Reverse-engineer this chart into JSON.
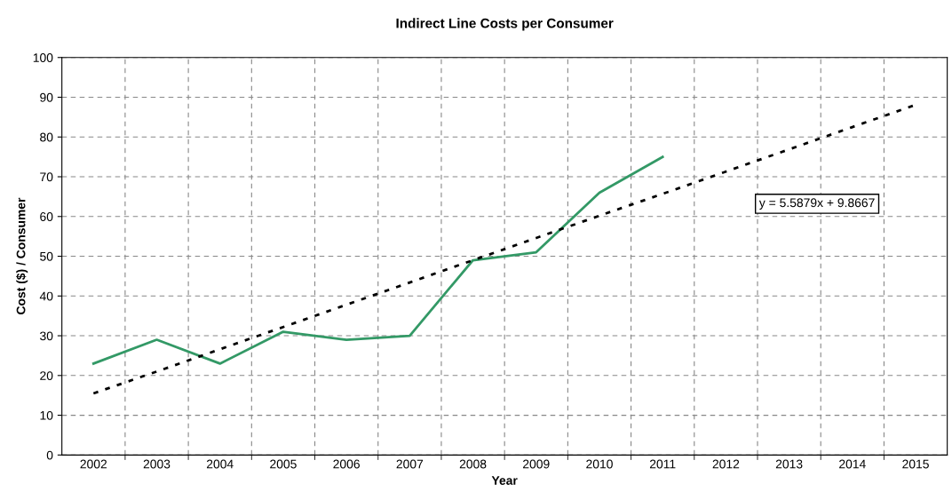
{
  "chart_data": {
    "type": "line",
    "title": "Indirect Line Costs per Consumer",
    "xlabel": "Year",
    "ylabel": "Cost ($) / Consumer",
    "categories": [
      "2002",
      "2003",
      "2004",
      "2005",
      "2006",
      "2007",
      "2008",
      "2009",
      "2010",
      "2011",
      "2012",
      "2013",
      "2014",
      "2015"
    ],
    "series": [
      {
        "color": "#339966",
        "values": [
          23,
          29,
          23,
          31,
          29,
          30,
          49,
          51,
          66,
          75,
          null,
          null,
          null,
          null
        ],
        "line_style": "solid"
      },
      {
        "type": "line",
        "color": "#000000",
        "values": [
          15.5,
          21.0,
          26.6,
          32.2,
          37.8,
          43.4,
          49.0,
          54.6,
          60.2,
          65.7,
          71.3,
          76.9,
          82.5,
          88.1
        ],
        "line_style": "dotted"
      }
    ],
    "annotations": [
      "y = 5.5879x + 9.8667"
    ],
    "ylim": [
      0,
      100
    ],
    "yticks": [
      0,
      10,
      20,
      30,
      40,
      50,
      60,
      70,
      80,
      90,
      100
    ],
    "grid": true,
    "marker": "none"
  }
}
